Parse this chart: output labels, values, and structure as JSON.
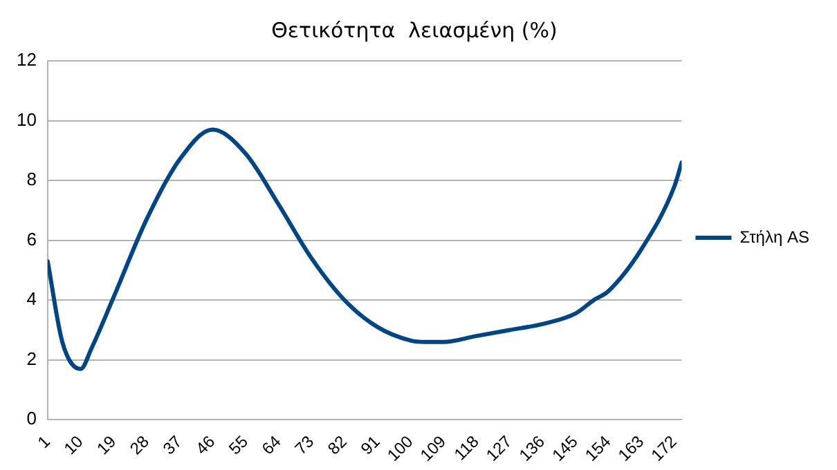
{
  "chart_data": {
    "type": "line",
    "title": "Θετικότητα  λειασμένη (%)",
    "x": [
      1,
      5,
      10,
      13,
      19,
      28,
      37,
      46,
      55,
      64,
      73,
      82,
      91,
      100,
      104,
      109,
      118,
      127,
      136,
      145,
      150,
      154,
      163,
      172,
      174
    ],
    "series": [
      {
        "name": "Στήλη AS",
        "color": "#004586",
        "values": [
          5.3,
          2.6,
          1.7,
          2.4,
          4.1,
          6.7,
          8.7,
          9.7,
          8.9,
          7.2,
          5.4,
          4.0,
          3.1,
          2.65,
          2.6,
          2.6,
          2.8,
          3.0,
          3.2,
          3.55,
          4.0,
          4.3,
          5.7,
          7.8,
          8.6
        ]
      }
    ],
    "xlim": [
      1,
      174
    ],
    "xticks": [
      1,
      10,
      19,
      28,
      37,
      46,
      55,
      64,
      73,
      82,
      91,
      100,
      109,
      118,
      127,
      136,
      145,
      154,
      163,
      172
    ],
    "ylim": [
      0,
      12
    ],
    "yticks": [
      0,
      2,
      4,
      6,
      8,
      10,
      12
    ],
    "grid": "y",
    "legend": "right",
    "marker": "none",
    "line_style": "solid"
  }
}
